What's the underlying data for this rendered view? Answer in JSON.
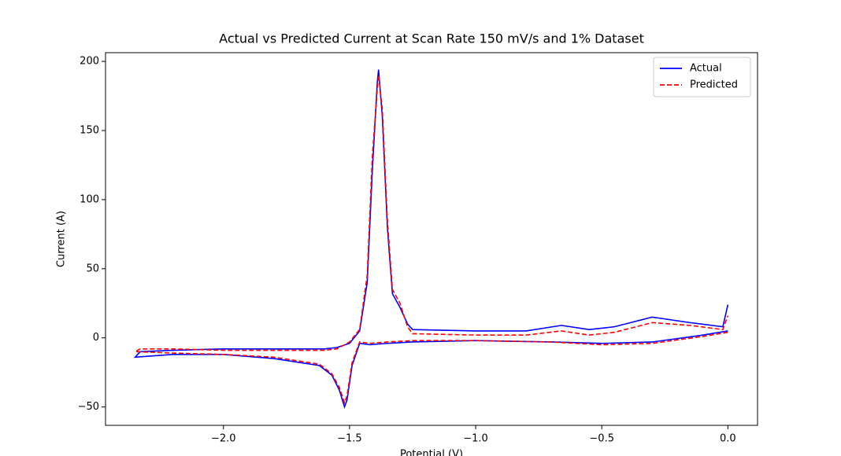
{
  "chart_data": {
    "type": "line",
    "title": "Actual vs Predicted Current at Scan Rate 150 mV/s and 1% Dataset",
    "x_label": "Potential (V)",
    "y_label": "Current (A)",
    "x": [
      0.0,
      -0.1,
      -0.3,
      -0.5,
      -0.7,
      -1.0,
      -1.25,
      -1.35,
      -1.42,
      -1.46,
      -1.49,
      -1.51,
      -1.52,
      -1.54,
      -1.57,
      -1.62,
      -1.8,
      -2.0,
      -2.2,
      -2.35,
      -2.33,
      -2.2,
      -2.0,
      -1.8,
      -1.6,
      -1.55,
      -1.5,
      -1.46,
      -1.43,
      -1.41,
      -1.39,
      -1.385,
      -1.37,
      -1.35,
      -1.33,
      -1.3,
      -1.27,
      -1.25,
      -1.0,
      -0.8,
      -0.66,
      -0.55,
      -0.45,
      -0.3,
      -0.15,
      -0.02,
      0.0
    ],
    "series": [
      {
        "name": "Actual",
        "color": "#0000ff",
        "linestyle": "solid",
        "values": [
          5,
          2,
          -3,
          -4,
          -3,
          -2,
          -3,
          -4,
          -5,
          -4,
          -20,
          -45,
          -50,
          -38,
          -27,
          -20,
          -15,
          -12,
          -12,
          -14,
          -10,
          -9,
          -8,
          -8,
          -8,
          -7,
          -4,
          5,
          40,
          120,
          185,
          194,
          160,
          80,
          32,
          22,
          10,
          6,
          5,
          5,
          9,
          6,
          8,
          15,
          11,
          8,
          24
        ]
      },
      {
        "name": "Predicted",
        "color": "#ff0000",
        "linestyle": "dashed",
        "values": [
          4,
          1,
          -4,
          -5,
          -3,
          -2,
          -2,
          -3,
          -4,
          -3,
          -18,
          -42,
          -47,
          -36,
          -26,
          -19,
          -14,
          -12,
          -11,
          -10,
          -8,
          -8,
          -9,
          -9,
          -9,
          -8,
          -3,
          6,
          45,
          130,
          180,
          190,
          165,
          85,
          35,
          25,
          8,
          3,
          2,
          2,
          5,
          2,
          4,
          11,
          9,
          6,
          16
        ]
      }
    ],
    "xlim": [
      -2.4675,
      0.1175
    ],
    "xticks": [
      {
        "value": -2.0,
        "label": "−2.0"
      },
      {
        "value": -1.5,
        "label": "−1.5"
      },
      {
        "value": -1.0,
        "label": "−1.0"
      },
      {
        "value": -0.5,
        "label": "−0.5"
      },
      {
        "value": 0.0,
        "label": "0.0"
      }
    ],
    "ylim": [
      -63.3,
      206.3
    ],
    "yticks": [
      {
        "value": -50,
        "label": "−50"
      },
      0,
      50,
      100,
      150,
      200
    ],
    "grid": false,
    "legend": "upper right"
  }
}
